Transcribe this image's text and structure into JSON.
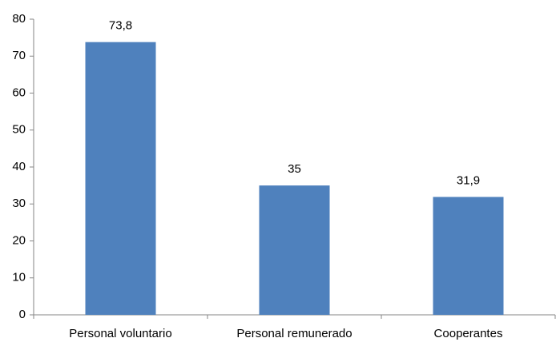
{
  "chart_data": {
    "type": "bar",
    "categories": [
      "Personal voluntario",
      "Personal remunerado",
      "Cooperantes"
    ],
    "values": [
      73.8,
      35,
      31.9
    ],
    "value_labels": [
      "73,8",
      "35",
      "31,9"
    ],
    "color": "#4f81bd",
    "ylim": [
      0,
      80
    ],
    "yticks": [
      0,
      10,
      20,
      30,
      40,
      50,
      60,
      70,
      80
    ],
    "grid": false
  }
}
